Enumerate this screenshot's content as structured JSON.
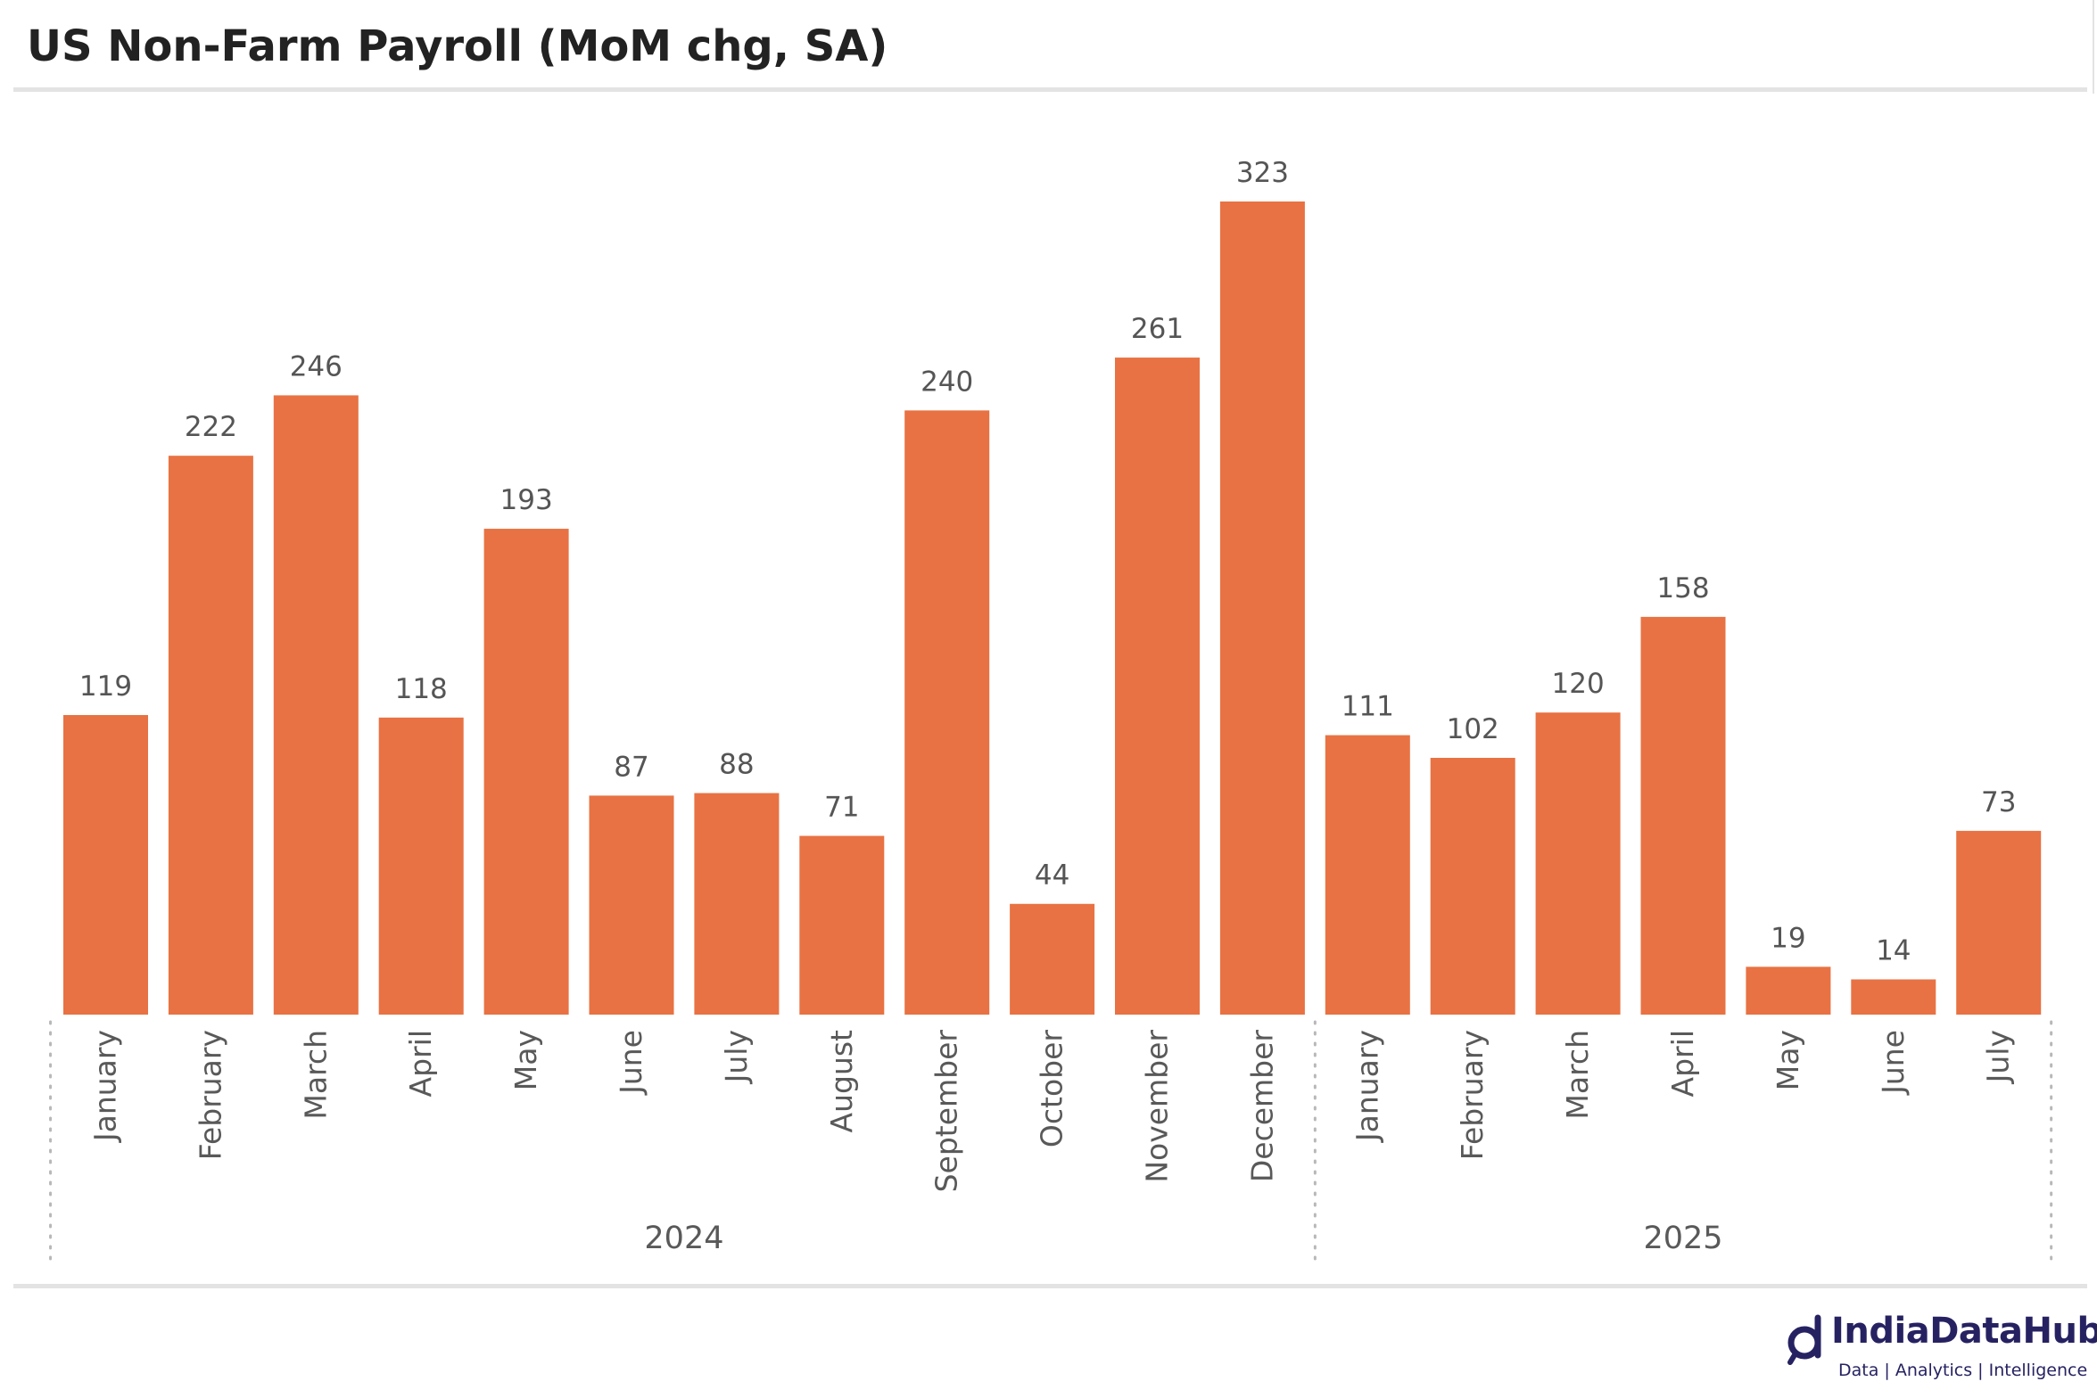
{
  "title": "US Non-Farm Payroll (MoM chg, SA)",
  "colors": {
    "bar": "#E87243",
    "label": "#555555",
    "axis_text": "#595959",
    "rule": "#E3E3E3",
    "brand": "#262262"
  },
  "logo": {
    "name": "IndiaDataHub",
    "tagline": "Data | Analytics | Intelligence",
    "icon": "magnifier-d-icon"
  },
  "chart_data": {
    "type": "bar",
    "title": "US Non-Farm Payroll (MoM chg, SA)",
    "xlabel": "",
    "ylabel": "",
    "ylim": [
      0,
      323
    ],
    "grid": false,
    "legend": "none",
    "categories": [
      "January",
      "February",
      "March",
      "April",
      "May",
      "June",
      "July",
      "August",
      "September",
      "October",
      "November",
      "December",
      "January",
      "February",
      "March",
      "April",
      "May",
      "June",
      "July"
    ],
    "values": [
      119,
      222,
      246,
      118,
      193,
      87,
      88,
      71,
      240,
      44,
      261,
      323,
      111,
      102,
      120,
      158,
      19,
      14,
      73
    ],
    "groups": [
      {
        "label": "2024",
        "count": 12
      },
      {
        "label": "2025",
        "count": 7
      }
    ]
  }
}
